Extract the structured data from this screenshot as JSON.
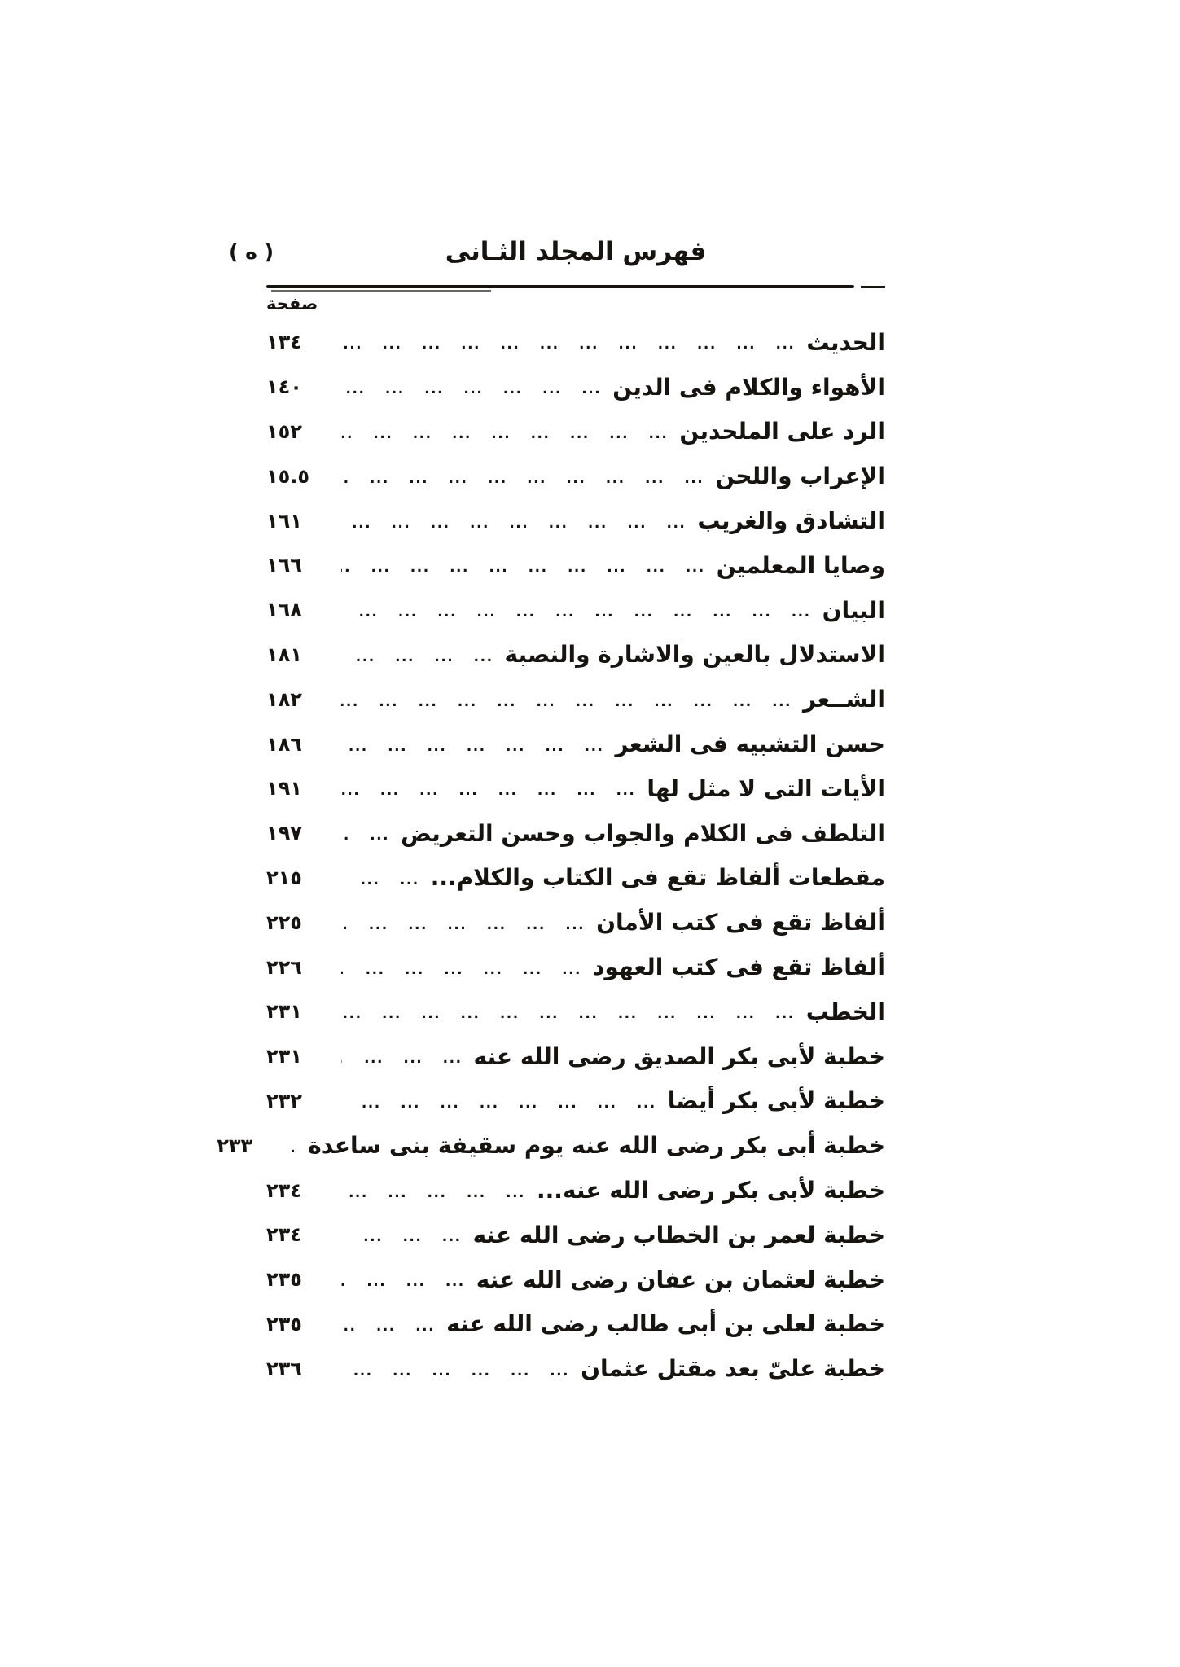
{
  "page": {
    "page_marker": "( ه )",
    "header_title": "فهرس المجلد الثـانى",
    "column_label": "صفحة"
  },
  "leader_dots": "... ... ... ... ... ... ... ... ... ... ... ... ... ... ... ... ... ... ... ... ... ...",
  "entries": [
    {
      "title": "الحديث",
      "page": "١٣٤"
    },
    {
      "title": "الأهواء والكلام فى الدين",
      "page": "١٤٠"
    },
    {
      "title": "الرد على الملحدين",
      "page": "١٥٢"
    },
    {
      "title": "الإعراب واللحن",
      "page": "١٥.٥"
    },
    {
      "title": "التشادق والغريب",
      "page": "١٦١"
    },
    {
      "title": "وصايا المعلمين",
      "page": "١٦٦"
    },
    {
      "title": "البيان",
      "page": "١٦٨"
    },
    {
      "title": "الاستدلال بالعين والاشارة والنصبة",
      "page": "١٨١"
    },
    {
      "title": "الشــعر",
      "page": "١٨٢"
    },
    {
      "title": "حسن التشبيه فى الشعر",
      "page": "١٨٦"
    },
    {
      "title": "الأيات التى لا مثل لها",
      "page": "١٩١"
    },
    {
      "title": "التلطف فى الكلام والجواب وحسن التعريض",
      "page": "١٩٧"
    },
    {
      "title": "مقطعات ألفاظ تقع فى الكتاب والكلام...",
      "page": "٢١٥"
    },
    {
      "title": "ألفاظ تقع فى كتب الأمان",
      "page": "٢٢٥"
    },
    {
      "title": "ألفاظ تقع فى كتب العهود",
      "page": "٢٢٦"
    },
    {
      "title": "الخطب",
      "page": "٢٣١"
    },
    {
      "title": "خطبة لأبى بكر الصديق رضى الله عنه",
      "page": "٢٣١"
    },
    {
      "title": "خطبة لأبى بكر أيضا",
      "page": "٢٣٢"
    },
    {
      "title": "خطبة أبى بكر رضى الله عنه يوم سقيفة بنى ساعدة",
      "page": "٢٣٣"
    },
    {
      "title": "خطبة لأبى بكر رضى الله عنه...",
      "page": "٢٣٤"
    },
    {
      "title": "خطبة لعمر بن الخطاب رضى الله عنه",
      "page": "٢٣٤"
    },
    {
      "title": "خطبة لعثمان بن عفان رضى الله عنه",
      "page": "٢٣٥"
    },
    {
      "title": "خطبة لعلى بن أبى طالب رضى الله عنه",
      "page": "٢٣٥"
    },
    {
      "title": "خطبة علىّ بعد مقتل عثمان",
      "page": "٢٣٦"
    }
  ],
  "colors": {
    "ink": "#17130f",
    "paper": "#ffffff"
  }
}
